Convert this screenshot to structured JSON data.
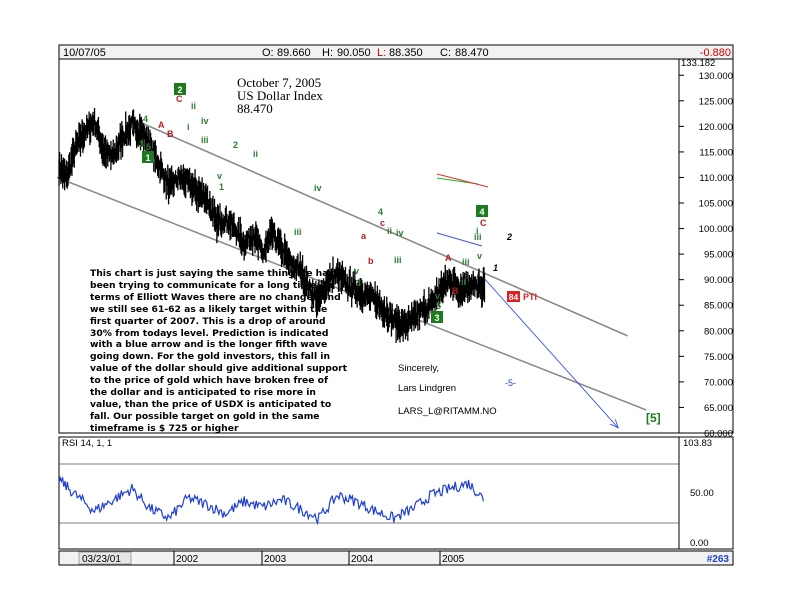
{
  "header": {
    "date": "10/07/05",
    "open_label": "O:",
    "open": "89.660",
    "high_label": "H:",
    "high": "90.050",
    "low_label": "L:",
    "low": "88.350",
    "close_label": "C:",
    "close": "88.470",
    "change": "-0.880"
  },
  "title": {
    "line1": "October 7, 2005",
    "line2": "US Dollar Index",
    "line3": "88.470"
  },
  "commentary": "This chart is just saying the same thing we have been trying to communicate for a long time. In terms of Elliott Waves there are no changes and we still see 61-62 as a likely target within the first quarter of 2007. This is a drop of around 30% from todays level. Prediction is indicated with a blue arrow and is the longer fifth wave going down. For the gold investors, this fall in value of the dollar should give additional support to the price of gold which have broken free of the dollar and is anticipated to rise more in value, than the price of USDX is anticipated to fall. Our possible target on gold in the same timeframe is $ 725 or higher",
  "signature": {
    "sincerely": "Sincerely,",
    "name": "Lars Lindgren",
    "email": "LARS_L@RITAMM.NO"
  },
  "indicator": {
    "label": "RSI 14, 1, 1",
    "max_label": "103.83",
    "mid_tick": "50.00",
    "low_tick": "0.00"
  },
  "footer": {
    "start_date": "03/23/01",
    "years": [
      "2002",
      "2003",
      "2004",
      "2005"
    ],
    "chart_id": "#263"
  },
  "pti": {
    "value": "84",
    "label": "PTI"
  },
  "target_label": "[5]",
  "wave_labels": [
    {
      "text": "1",
      "color": "#2e7d32"
    },
    {
      "text": "2",
      "color": "#2e7d32"
    },
    {
      "text": "3",
      "color": "#2e7d32"
    },
    {
      "text": "4",
      "color": "#2e7d32"
    },
    {
      "text": "5",
      "color": "#2e7d32"
    },
    {
      "text": "A",
      "color": "#b71c1c"
    },
    {
      "text": "B",
      "color": "#b71c1c"
    },
    {
      "text": "C",
      "color": "#b71c1c"
    },
    {
      "text": "i",
      "color": "#2e7d32"
    },
    {
      "text": "ii",
      "color": "#2e7d32"
    },
    {
      "text": "iii",
      "color": "#2e7d32"
    },
    {
      "text": "iv",
      "color": "#2e7d32"
    },
    {
      "text": "v",
      "color": "#2e7d32"
    },
    {
      "text": "a",
      "color": "#b71c1c"
    },
    {
      "text": "b",
      "color": "#b71c1c"
    },
    {
      "text": "c",
      "color": "#b71c1c"
    },
    {
      "text": "-5-",
      "color": "#1f3fd0"
    }
  ],
  "boxed_labels": [
    "1",
    "2",
    "3",
    "4"
  ],
  "colors": {
    "price": "#000000",
    "channel": "#8a8a8a",
    "projection": "#3c54e8",
    "rsi": "#1f3fd0",
    "wave_green": "#2e7d32",
    "wave_red": "#b71c1c",
    "pti_bg": "#e02020",
    "change": "#d00000",
    "panel": "#f2f2f2"
  },
  "chart_data": [
    {
      "type": "line",
      "style": "ohlc-bars",
      "ylim": [
        60,
        133.182
      ],
      "y_ticks": [
        "130.000",
        "125.000",
        "120.000",
        "115.000",
        "110.000",
        "105.000",
        "100.000",
        "95.000",
        "90.000",
        "85.000",
        "80.000",
        "75.000",
        "70.000",
        "65.000",
        "60.000"
      ],
      "top_label": "133.182",
      "x_tick_labels": [
        "2002",
        "2003",
        "2004",
        "2005"
      ],
      "series": [
        {
          "name": "",
          "x": [
            2001.22,
            2001.3,
            2001.4,
            2001.5,
            2001.6,
            2001.7,
            2001.8,
            2001.9,
            2002.0,
            2002.1,
            2002.2,
            2002.3,
            2002.4,
            2002.5,
            2002.6,
            2002.7,
            2002.8,
            2002.9,
            2003.0,
            2003.1,
            2003.2,
            2003.3,
            2003.4,
            2003.5,
            2003.6,
            2003.7,
            2003.8,
            2003.9,
            2004.0,
            2004.1,
            2004.2,
            2004.3,
            2004.4,
            2004.5,
            2004.6,
            2004.7,
            2004.8,
            2004.9,
            2005.0,
            2005.1,
            2005.2,
            2005.3,
            2005.4,
            2005.5,
            2005.6,
            2005.7,
            2005.77
          ],
          "values": [
            112,
            110,
            116,
            119,
            121,
            115,
            114,
            118,
            120,
            119,
            116,
            112,
            108,
            110,
            109,
            107,
            106,
            101,
            102,
            100,
            97,
            99,
            95,
            99,
            96,
            93,
            92,
            88,
            86,
            90,
            91,
            89,
            88,
            87,
            86,
            84,
            82,
            81,
            82,
            84,
            85,
            88,
            90,
            88,
            89,
            88.5,
            88.47
          ]
        }
      ],
      "channels": [
        {
          "name": "upper",
          "x": [
            2002.0,
            2007.3
          ],
          "y": [
            121.5,
            79.0
          ]
        },
        {
          "name": "lower",
          "x": [
            2001.2,
            2007.5
          ],
          "y": [
            110.0,
            64.5
          ]
        }
      ],
      "projection": {
        "x": [
          2005.77,
          2007.2
        ],
        "y": [
          90.2,
          61
        ]
      }
    },
    {
      "type": "line",
      "title": "RSI 14, 1, 1",
      "ylim": [
        0,
        103.83
      ],
      "reference_lines": [
        30,
        70
      ],
      "series": [
        {
          "name": "",
          "x": [
            2001.22,
            2001.4,
            2001.6,
            2001.8,
            2002.0,
            2002.2,
            2002.4,
            2002.6,
            2002.8,
            2003.0,
            2003.2,
            2003.4,
            2003.6,
            2003.8,
            2004.0,
            2004.2,
            2004.4,
            2004.6,
            2004.8,
            2005.0,
            2005.2,
            2005.4,
            2005.6,
            2005.77
          ],
          "values": [
            72,
            55,
            38,
            50,
            62,
            40,
            30,
            52,
            45,
            35,
            48,
            42,
            50,
            40,
            30,
            55,
            48,
            38,
            30,
            40,
            55,
            62,
            68,
            50
          ]
        }
      ]
    }
  ]
}
